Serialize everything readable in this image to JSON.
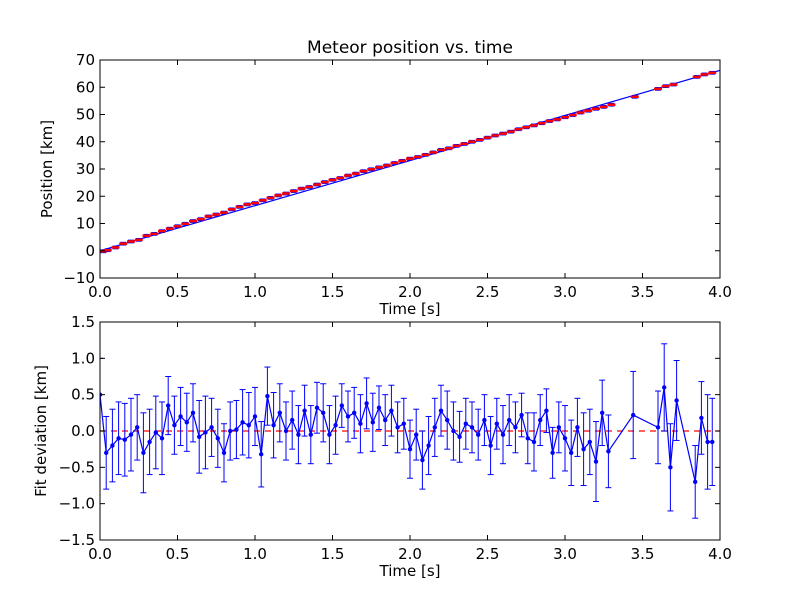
{
  "chart_data": [
    {
      "type": "line",
      "title": "Meteor position vs. time",
      "xlabel": "Time [s]",
      "ylabel": "Position [km]",
      "xlim": [
        0.0,
        4.0
      ],
      "ylim": [
        -10,
        70
      ],
      "xticks": [
        "0.0",
        "0.5",
        "1.0",
        "1.5",
        "2.0",
        "2.5",
        "3.0",
        "3.5",
        "4.0"
      ],
      "yticks": [
        "−10",
        "0",
        "10",
        "20",
        "30",
        "40",
        "50",
        "60",
        "70"
      ],
      "grid": false,
      "series": [
        {
          "role": "measured-points-with-errorbars",
          "color": "#ff0000",
          "ecolor": "#0000ff",
          "x": [
            0.02,
            0.05,
            0.1,
            0.15,
            0.2,
            0.25,
            0.3,
            0.35,
            0.4,
            0.45,
            0.5,
            0.55,
            0.6,
            0.65,
            0.7,
            0.75,
            0.8,
            0.85,
            0.9,
            0.95,
            1.0,
            1.05,
            1.1,
            1.15,
            1.2,
            1.25,
            1.3,
            1.35,
            1.4,
            1.45,
            1.5,
            1.55,
            1.6,
            1.65,
            1.7,
            1.75,
            1.8,
            1.85,
            1.9,
            1.95,
            2.0,
            2.05,
            2.1,
            2.15,
            2.2,
            2.25,
            2.3,
            2.35,
            2.4,
            2.45,
            2.5,
            2.55,
            2.6,
            2.65,
            2.7,
            2.75,
            2.8,
            2.85,
            2.9,
            2.95,
            3.0,
            3.05,
            3.1,
            3.15,
            3.2,
            3.25,
            3.3,
            3.45,
            3.6,
            3.65,
            3.7,
            3.85,
            3.9,
            3.95
          ],
          "y": [
            -0.2,
            0.2,
            1.2,
            2.6,
            3.4,
            4.0,
            5.5,
            6.2,
            7.2,
            8.1,
            9.0,
            9.9,
            10.9,
            11.6,
            12.6,
            13.3,
            14.0,
            15.2,
            16.1,
            17.0,
            17.5,
            18.5,
            19.4,
            20.3,
            21.0,
            21.9,
            22.8,
            23.4,
            24.3,
            25.2,
            26.0,
            26.7,
            27.6,
            28.3,
            29.2,
            29.9,
            30.6,
            31.3,
            32.2,
            33.0,
            33.8,
            34.4,
            35.2,
            36.1,
            37.0,
            37.6,
            38.5,
            39.2,
            40.0,
            40.7,
            41.5,
            42.3,
            43.0,
            43.7,
            44.6,
            45.3,
            46.0,
            46.8,
            47.6,
            48.2,
            49.0,
            49.8,
            50.7,
            51.4,
            52.1,
            52.8,
            53.6,
            56.5,
            59.4,
            60.4,
            61.0,
            63.8,
            64.7,
            65.3
          ],
          "yerr": 0.5
        },
        {
          "role": "linear-fit",
          "color": "#0000ff",
          "x": [
            0.0,
            4.0
          ],
          "y": [
            0.0,
            66.2
          ]
        }
      ]
    },
    {
      "type": "line",
      "title": "",
      "xlabel": "Time [s]",
      "ylabel": "Fit deviation [km]",
      "xlim": [
        0.0,
        4.0
      ],
      "ylim": [
        -1.5,
        1.5
      ],
      "xticks": [
        "0.0",
        "0.5",
        "1.0",
        "1.5",
        "2.0",
        "2.5",
        "3.0",
        "3.5",
        "4.0"
      ],
      "yticks": [
        "−1.5",
        "−1.0",
        "−0.5",
        "0.0",
        "0.5",
        "1.0",
        "1.5"
      ],
      "grid": false,
      "series": [
        {
          "role": "residuals-with-errorbars",
          "color": "#0000ff",
          "x": [
            0.0,
            0.04,
            0.08,
            0.12,
            0.16,
            0.2,
            0.24,
            0.28,
            0.32,
            0.36,
            0.4,
            0.44,
            0.48,
            0.52,
            0.56,
            0.6,
            0.64,
            0.68,
            0.72,
            0.76,
            0.8,
            0.84,
            0.88,
            0.92,
            0.96,
            1.0,
            1.04,
            1.08,
            1.12,
            1.16,
            1.2,
            1.24,
            1.28,
            1.32,
            1.36,
            1.4,
            1.44,
            1.48,
            1.52,
            1.56,
            1.6,
            1.64,
            1.68,
            1.72,
            1.76,
            1.8,
            1.84,
            1.88,
            1.92,
            1.96,
            2.0,
            2.04,
            2.08,
            2.12,
            2.16,
            2.2,
            2.24,
            2.28,
            2.32,
            2.36,
            2.4,
            2.44,
            2.48,
            2.52,
            2.56,
            2.6,
            2.64,
            2.68,
            2.72,
            2.76,
            2.8,
            2.84,
            2.88,
            2.92,
            2.96,
            3.0,
            3.04,
            3.08,
            3.12,
            3.16,
            3.2,
            3.24,
            3.28,
            3.44,
            3.6,
            3.64,
            3.68,
            3.72,
            3.84,
            3.88,
            3.92,
            3.95
          ],
          "y": [
            0.5,
            -0.3,
            -0.2,
            -0.1,
            -0.12,
            -0.05,
            0.05,
            -0.3,
            -0.15,
            -0.02,
            -0.1,
            0.35,
            0.08,
            0.2,
            0.12,
            0.25,
            -0.08,
            -0.02,
            0.05,
            -0.1,
            -0.3,
            0.0,
            0.02,
            0.12,
            0.08,
            0.2,
            -0.32,
            0.48,
            0.08,
            0.25,
            0.0,
            0.15,
            -0.05,
            0.28,
            -0.05,
            0.32,
            0.25,
            -0.05,
            0.08,
            0.35,
            0.2,
            0.25,
            0.1,
            0.38,
            0.12,
            0.32,
            0.15,
            0.28,
            0.05,
            0.1,
            -0.25,
            -0.05,
            -0.4,
            -0.2,
            0.05,
            0.28,
            0.15,
            0.0,
            -0.08,
            0.1,
            0.05,
            -0.05,
            0.15,
            -0.2,
            0.1,
            -0.05,
            0.15,
            0.05,
            0.22,
            -0.1,
            -0.15,
            0.15,
            0.28,
            -0.3,
            0.05,
            -0.1,
            -0.3,
            0.05,
            -0.25,
            -0.15,
            -0.42,
            0.25,
            -0.28,
            0.22,
            0.05,
            0.6,
            -0.5,
            0.42,
            -0.7,
            0.18,
            -0.15,
            -0.15
          ],
          "yerr": [
            0.5,
            0.5,
            0.5,
            0.5,
            0.5,
            0.5,
            0.45,
            0.55,
            0.45,
            0.5,
            0.5,
            0.4,
            0.4,
            0.4,
            0.4,
            0.4,
            0.5,
            0.5,
            0.4,
            0.4,
            0.4,
            0.4,
            0.4,
            0.45,
            0.45,
            0.4,
            0.45,
            0.4,
            0.45,
            0.4,
            0.4,
            0.4,
            0.4,
            0.35,
            0.4,
            0.35,
            0.4,
            0.4,
            0.4,
            0.3,
            0.35,
            0.35,
            0.4,
            0.35,
            0.4,
            0.3,
            0.35,
            0.35,
            0.35,
            0.35,
            0.4,
            0.35,
            0.4,
            0.4,
            0.4,
            0.35,
            0.4,
            0.4,
            0.35,
            0.35,
            0.35,
            0.35,
            0.35,
            0.4,
            0.35,
            0.4,
            0.35,
            0.35,
            0.3,
            0.35,
            0.4,
            0.35,
            0.3,
            0.35,
            0.35,
            0.45,
            0.45,
            0.4,
            0.5,
            0.45,
            0.55,
            0.45,
            0.5,
            0.6,
            0.5,
            0.6,
            0.6,
            0.55,
            0.5,
            0.5,
            0.65,
            0.6
          ]
        },
        {
          "role": "zero-reference",
          "color": "#ff0000",
          "style": "dashed",
          "y": 0.0
        }
      ]
    }
  ]
}
